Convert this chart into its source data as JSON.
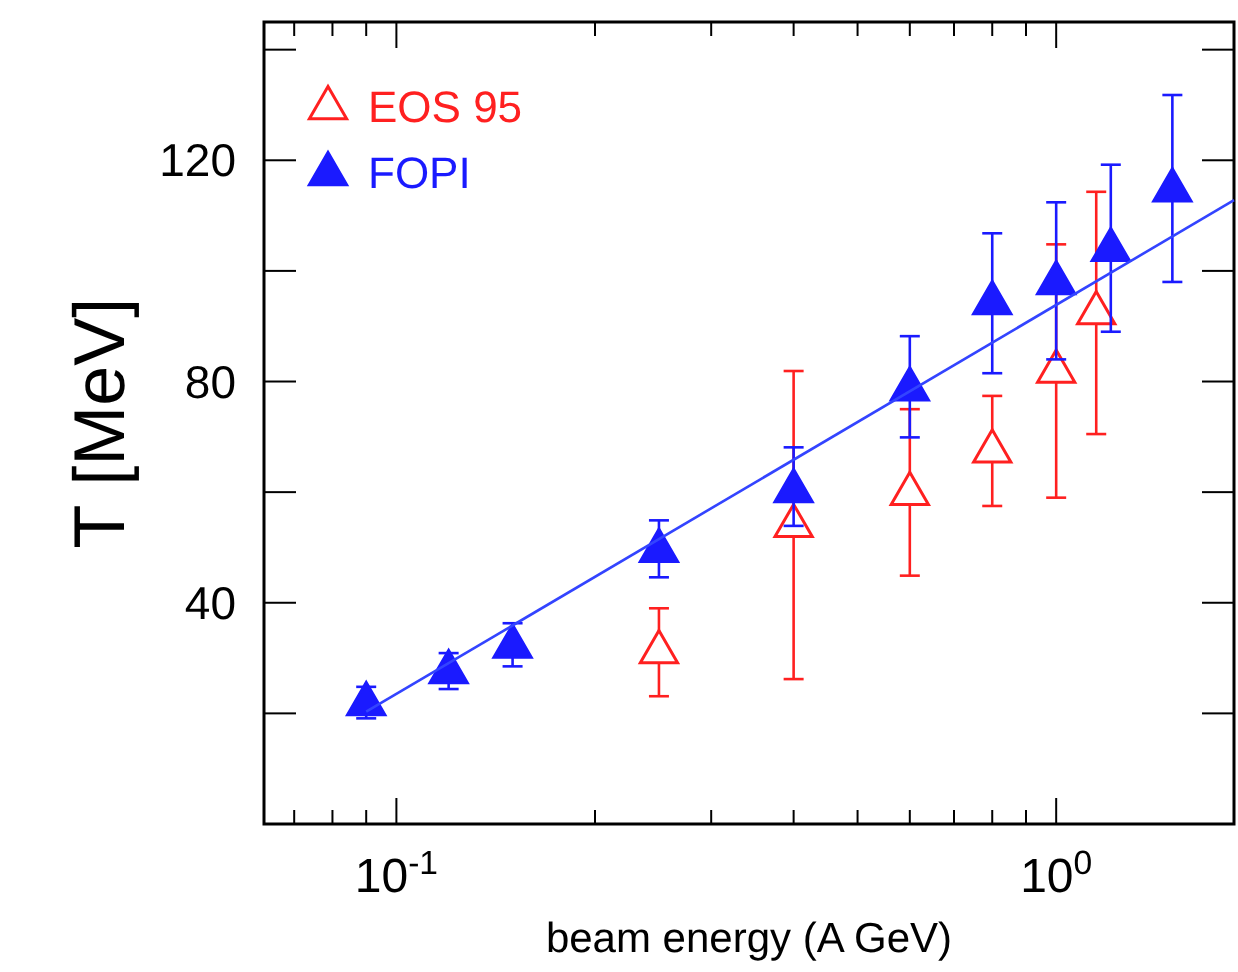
{
  "chart_data": {
    "type": "scatter",
    "xlabel": "beam energy (A GeV)",
    "ylabel": "T [MeV]",
    "log": "x",
    "legend": "top left",
    "grid": false,
    "xlim": [
      0.063,
      1.86
    ],
    "ylim": [
      0,
      145
    ],
    "xticks": [
      {
        "value": 0.07,
        "label": null
      },
      {
        "value": 0.08,
        "label": null
      },
      {
        "value": 0.09,
        "label": null
      },
      {
        "value": 0.1,
        "label": "10$^{-1}$"
      },
      {
        "value": 0.2,
        "label": null
      },
      {
        "value": 0.3,
        "label": null
      },
      {
        "value": 0.4,
        "label": null
      },
      {
        "value": 0.5,
        "label": null
      },
      {
        "value": 0.6,
        "label": null
      },
      {
        "value": 0.7,
        "label": null
      },
      {
        "value": 0.8,
        "label": null
      },
      {
        "value": 0.9,
        "label": null
      },
      {
        "value": 1,
        "label": "10$^{0}$"
      }
    ],
    "yticks": [
      {
        "value": 20,
        "label": null
      },
      40,
      {
        "value": 60,
        "label": null
      },
      80,
      {
        "value": 100,
        "label": null
      },
      120,
      {
        "value": 140,
        "label": null
      }
    ],
    "series": [
      {
        "name": "EOS 95",
        "color": "#ff2020",
        "marker": "triangle-open",
        "x": [
          0.25,
          0.4,
          0.6,
          0.8,
          1.0,
          1.15
        ],
        "values": [
          31.1,
          53.9,
          59.7,
          67.4,
          81.8,
          92.4
        ],
        "errors": [
          [
            23.1,
            39.0
          ],
          [
            26.2,
            81.9
          ],
          [
            44.9,
            75.0
          ],
          [
            57.5,
            77.4
          ],
          [
            59.0,
            104.8
          ],
          [
            70.5,
            114.3
          ]
        ]
      },
      {
        "name": "FOPI",
        "color": "#1a1aff",
        "marker": "triangle",
        "x": [
          0.09,
          0.12,
          0.15,
          0.25,
          0.4,
          0.6,
          0.8,
          1.0,
          1.21,
          1.5
        ],
        "values": [
          21.7,
          27.5,
          32.1,
          49.4,
          60.2,
          78.6,
          94.2,
          97.8,
          103.8,
          114.6
        ],
        "errors": [
          [
            19.1,
            24.8
          ],
          [
            24.4,
            30.9
          ],
          [
            28.5,
            36.3
          ],
          [
            44.6,
            54.9
          ],
          [
            53.9,
            68.1
          ],
          [
            69.9,
            88.2
          ],
          [
            81.5,
            106.8
          ],
          [
            84.0,
            112.4
          ],
          [
            89.0,
            119.2
          ],
          [
            98.0,
            131.8
          ]
        ]
      },
      {
        "type": "line",
        "color": "#3344ff",
        "marker": "none",
        "x": [
          0.09,
          1.86
        ],
        "values": [
          20.3,
          112.8
        ]
      }
    ]
  }
}
